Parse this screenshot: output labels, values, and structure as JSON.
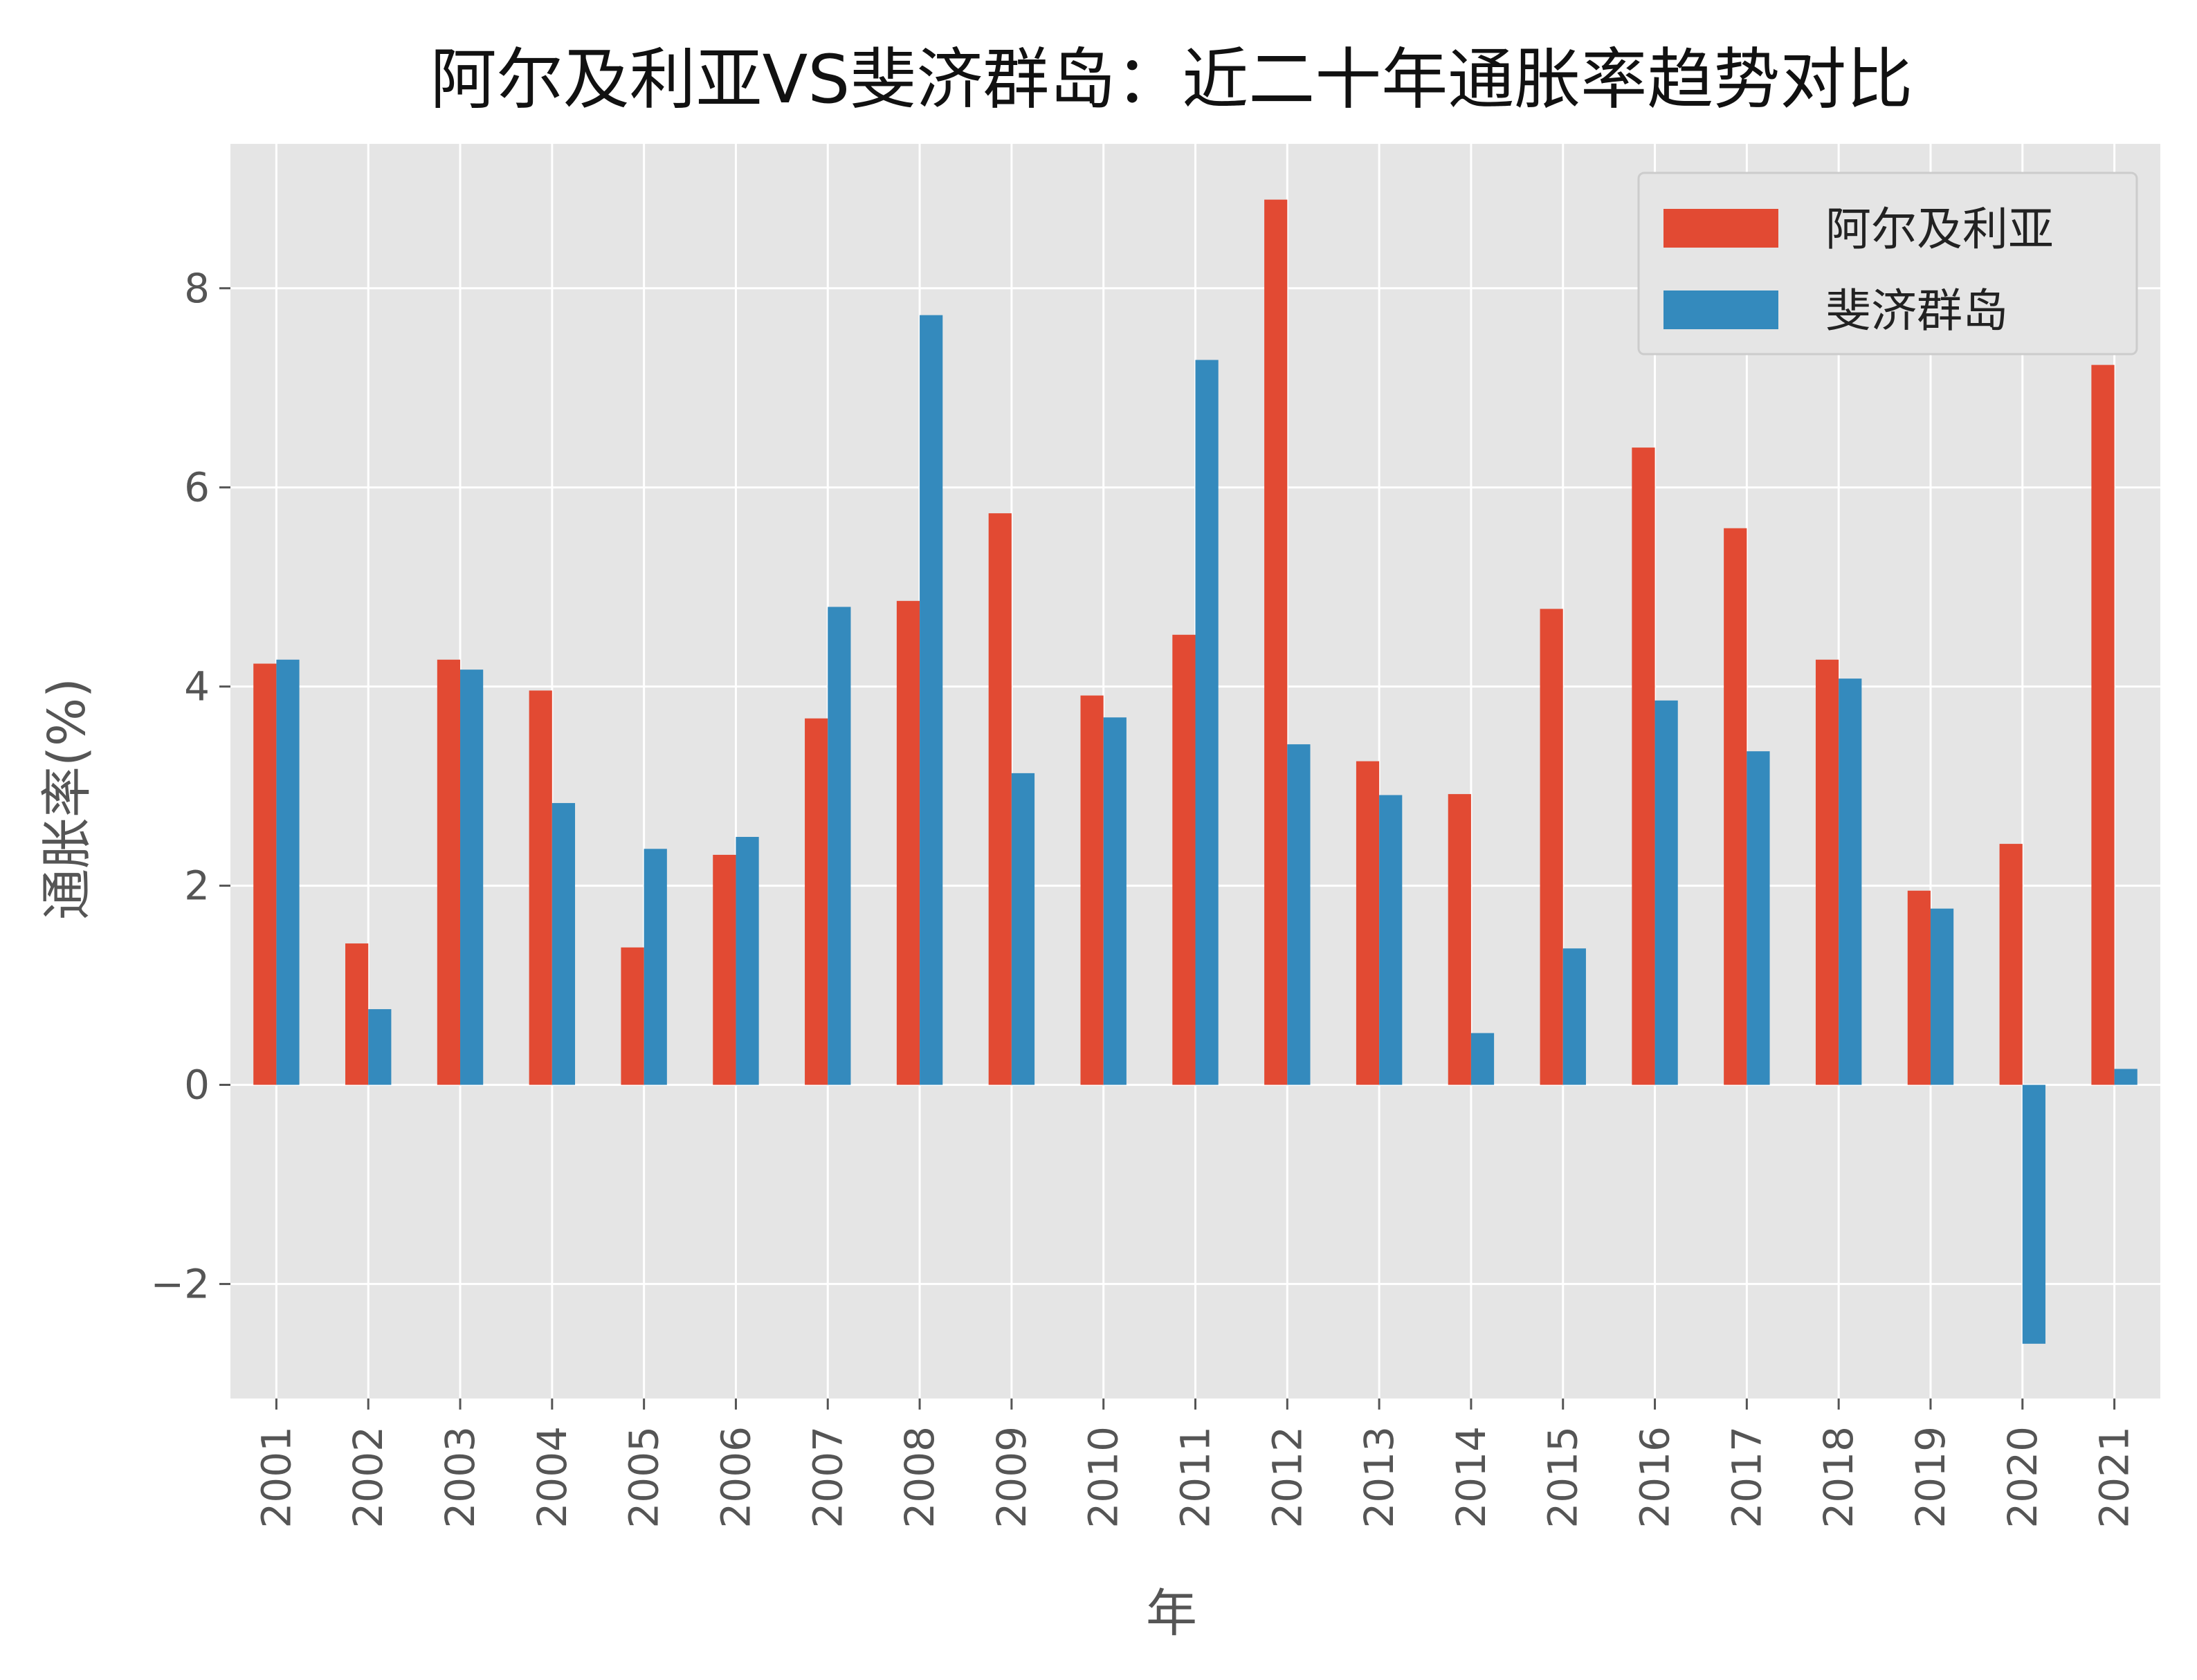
{
  "chart_data": {
    "type": "bar",
    "title": "阿尔及利亚VS斐济群岛：近二十年通胀率趋势对比",
    "xlabel": "年",
    "ylabel": "通胀率(%)",
    "ylim": [
      -3.15,
      9.45
    ],
    "yticks": [
      -2,
      0,
      2,
      4,
      6,
      8
    ],
    "grid": true,
    "legend_position": "top-right",
    "categories": [
      "2001",
      "2002",
      "2003",
      "2004",
      "2005",
      "2006",
      "2007",
      "2008",
      "2009",
      "2010",
      "2011",
      "2012",
      "2013",
      "2014",
      "2015",
      "2016",
      "2017",
      "2018",
      "2019",
      "2020",
      "2021"
    ],
    "series": [
      {
        "name": "阿尔及利亚",
        "color": "#E24A33",
        "values": [
          4.23,
          1.42,
          4.27,
          3.96,
          1.38,
          2.31,
          3.68,
          4.86,
          5.74,
          3.91,
          4.52,
          8.89,
          3.25,
          2.92,
          4.78,
          6.4,
          5.59,
          4.27,
          1.95,
          2.42,
          7.23
        ]
      },
      {
        "name": "斐济群岛",
        "color": "#348ABD",
        "values": [
          4.27,
          0.76,
          4.17,
          2.83,
          2.37,
          2.49,
          4.8,
          7.73,
          3.13,
          3.69,
          7.28,
          3.42,
          2.91,
          0.52,
          1.37,
          3.86,
          3.35,
          4.08,
          1.77,
          -2.6,
          0.16
        ]
      }
    ]
  },
  "colors": {
    "plot_background": "#E5E5E5",
    "grid": "#FFFFFF",
    "text": "#555555"
  }
}
